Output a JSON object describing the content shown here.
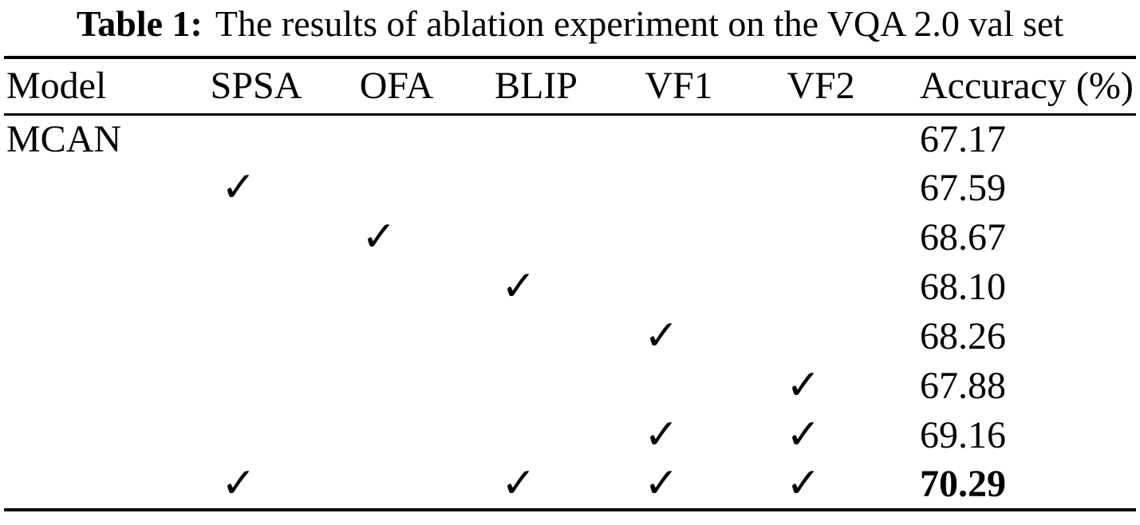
{
  "title": {
    "label": "Table 1:",
    "text": "The results of ablation experiment on the VQA 2.0 val set"
  },
  "table": {
    "columns": [
      "Model",
      "SPSA",
      "OFA",
      "BLIP",
      "VF1",
      "VF2",
      "Accuracy (%)"
    ],
    "check_glyph": "✓",
    "rows": [
      [
        "MCAN",
        "",
        "",
        "",
        "",
        "",
        "67.17"
      ],
      [
        "",
        "✓",
        "",
        "",
        "",
        "",
        "67.59"
      ],
      [
        "",
        "",
        "✓",
        "",
        "",
        "",
        "68.67"
      ],
      [
        "",
        "",
        "",
        "✓",
        "",
        "",
        "68.10"
      ],
      [
        "",
        "",
        "",
        "",
        "✓",
        "",
        "68.26"
      ],
      [
        "",
        "",
        "",
        "",
        "",
        "✓",
        "67.88"
      ],
      [
        "",
        "",
        "",
        "",
        "✓",
        "✓",
        "69.16"
      ],
      [
        "",
        "✓",
        "",
        "✓",
        "✓",
        "✓",
        "70.29"
      ]
    ]
  }
}
